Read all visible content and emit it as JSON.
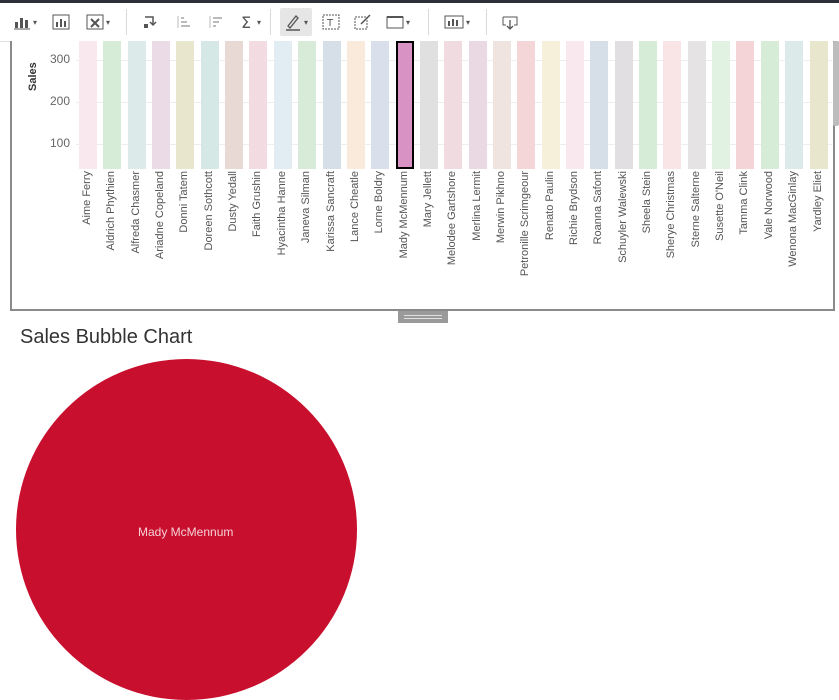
{
  "toolbar": {
    "buttons": [
      {
        "name": "show-me-chart-icon",
        "caret": true
      },
      {
        "name": "swap-sheet-icon",
        "caret": false
      },
      {
        "name": "clear-sheet-icon",
        "caret": true
      },
      {
        "name": "swap-rows-columns-icon",
        "caret": false
      },
      {
        "name": "sort-ascending-icon",
        "caret": false
      },
      {
        "name": "sort-descending-icon",
        "caret": false
      },
      {
        "name": "totals-sigma-icon",
        "caret": true
      },
      {
        "name": "highlight-pen-icon",
        "caret": true
      },
      {
        "name": "show-mark-labels-icon",
        "caret": false
      },
      {
        "name": "annotate-icon",
        "caret": false
      },
      {
        "name": "fit-view-icon",
        "caret": true
      },
      {
        "name": "show-cards-icon",
        "caret": true
      },
      {
        "name": "download-icon",
        "caret": false
      }
    ]
  },
  "chart_data": [
    {
      "type": "bar",
      "ylabel": "Sales",
      "yticks": [
        100,
        200,
        300
      ],
      "ylim": [
        40,
        370
      ],
      "selected": "Mady McMennum",
      "categories": [
        "Aime Ferry",
        "Aldrich Phythien",
        "Alfreda Chasmer",
        "Ariadne Copeland",
        "Donni Tatem",
        "Doreen Sothcott",
        "Dusty Yedall",
        "Faith Grushin",
        "Hyacintha Hanne",
        "Janeva Silman",
        "Karissa Sancraft",
        "Lance Cheatle",
        "Lorne Boldry",
        "Mady McMennum",
        "Mary Jellett",
        "Melodee Gartshore",
        "Merlina Lermit",
        "Merwin Pikhno",
        "Petronille Scrimgeour",
        "Renato Paulin",
        "Richie Brydson",
        "Roanna Safont",
        "Schuyler Walewski",
        "Sheela Stein",
        "Sherye Christmas",
        "Sterne Salterne",
        "Susette O'Neil",
        "Tamma Clink",
        "Vale Norwood",
        "Wenona MacGinlay",
        "Yardley Eliet"
      ],
      "values": [
        370,
        370,
        355,
        370,
        370,
        370,
        355,
        370,
        370,
        355,
        370,
        355,
        370,
        370,
        355,
        355,
        355,
        370,
        370,
        370,
        370,
        355,
        355,
        370,
        370,
        370,
        370,
        355,
        370,
        355,
        355
      ],
      "colors": [
        "#f9e8ee",
        "#d6ecd6",
        "#dcebea",
        "#eadbe6",
        "#e8e6cc",
        "#d6e8e6",
        "#e8d9d4",
        "#f3dbe2",
        "#e1ecf3",
        "#d8ead8",
        "#d6dee8",
        "#f9eadb",
        "#d9e0ec",
        "#d992c4",
        "#e1e0e0",
        "#f0dbe1",
        "#ead9e3",
        "#f0e4e1",
        "#f4d5d8",
        "#f6f0db",
        "#f9e8ee",
        "#d6dee8",
        "#e1dfe1",
        "#d6ecd6",
        "#f9e4e6",
        "#e5e3e3",
        "#e2f2e2",
        "#f4d4d7",
        "#d6ecd6",
        "#dcebea",
        "#e8e6cc"
      ]
    },
    {
      "type": "bubble",
      "title": "Sales Bubble Chart",
      "bubbles": [
        {
          "label": "Mady McMennum",
          "color": "#c8102e"
        }
      ]
    }
  ]
}
